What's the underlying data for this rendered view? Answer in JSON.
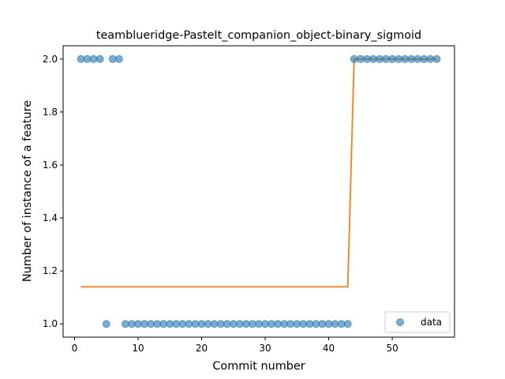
{
  "chart_data": {
    "type": "scatter",
    "title": "teamblueridge-PasteIt_companion_object-binary_sigmoid",
    "xlabel": "Commit number",
    "ylabel": "Number of instance of a feature",
    "xlim": [
      -1.8,
      59.8
    ],
    "ylim": [
      0.95,
      2.05
    ],
    "xticks": [
      0,
      10,
      20,
      30,
      40,
      50
    ],
    "yticks": [
      1.0,
      1.2,
      1.4,
      1.6,
      1.8,
      2.0
    ],
    "xtick_labels": [
      "0",
      "10",
      "20",
      "30",
      "40",
      "50"
    ],
    "ytick_labels": [
      "1.0",
      "1.2",
      "1.4",
      "1.6",
      "1.8",
      "2.0"
    ],
    "grid": false,
    "legend": {
      "entries": [
        "data"
      ],
      "placement": "lower-right"
    },
    "series": [
      {
        "name": "data",
        "kind": "scatter",
        "color": "#1f77b4",
        "x": [
          1,
          2,
          3,
          4,
          5,
          6,
          7,
          8,
          9,
          10,
          11,
          12,
          13,
          14,
          15,
          16,
          17,
          18,
          19,
          20,
          21,
          22,
          23,
          24,
          25,
          26,
          27,
          28,
          29,
          30,
          31,
          32,
          33,
          34,
          35,
          36,
          37,
          38,
          39,
          40,
          41,
          42,
          43,
          44,
          45,
          46,
          47,
          48,
          49,
          50,
          51,
          52,
          53,
          54,
          55,
          56,
          57
        ],
        "y": [
          2,
          2,
          2,
          2,
          1,
          2,
          2,
          1,
          1,
          1,
          1,
          1,
          1,
          1,
          1,
          1,
          1,
          1,
          1,
          1,
          1,
          1,
          1,
          1,
          1,
          1,
          1,
          1,
          1,
          1,
          1,
          1,
          1,
          1,
          1,
          1,
          1,
          1,
          1,
          1,
          1,
          1,
          1,
          2,
          2,
          2,
          2,
          2,
          2,
          2,
          2,
          2,
          2,
          2,
          2,
          2,
          2
        ]
      },
      {
        "kind": "line",
        "color": "#ff7f0e",
        "x": [
          1,
          43,
          44,
          57
        ],
        "y": [
          1.14,
          1.14,
          2.0,
          2.0
        ]
      }
    ]
  }
}
